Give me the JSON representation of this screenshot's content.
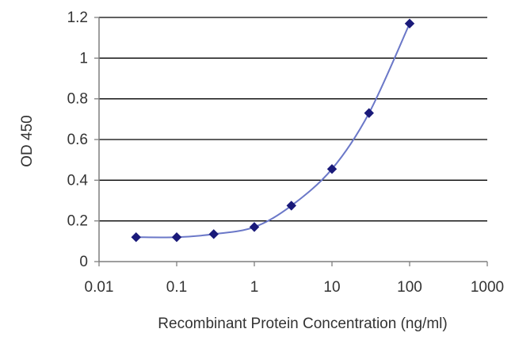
{
  "chart_data": {
    "type": "scatter",
    "title": "",
    "xlabel": "Recombinant Protein Concentration (ng/ml)",
    "ylabel": "OD 450",
    "x_scale": "log",
    "xlim": [
      0.01,
      1000
    ],
    "ylim": [
      0,
      1.2
    ],
    "x_ticks": [
      "0.01",
      "0.1",
      "1",
      "10",
      "100",
      "1000"
    ],
    "y_ticks": [
      "0",
      "0.2",
      "0.4",
      "0.6",
      "0.8",
      "1",
      "1.2"
    ],
    "grid": "horizontal",
    "legend": "none",
    "series": [
      {
        "x": [
          0.03,
          0.1,
          0.3,
          1,
          3,
          10,
          30,
          100
        ],
        "y": [
          0.12,
          0.12,
          0.135,
          0.17,
          0.275,
          0.455,
          0.73,
          1.17
        ]
      }
    ],
    "colors": {
      "series": "#1a1a7a",
      "line": "#6b78c8",
      "grid": "#000000",
      "axis": "#7f7f7f"
    }
  }
}
